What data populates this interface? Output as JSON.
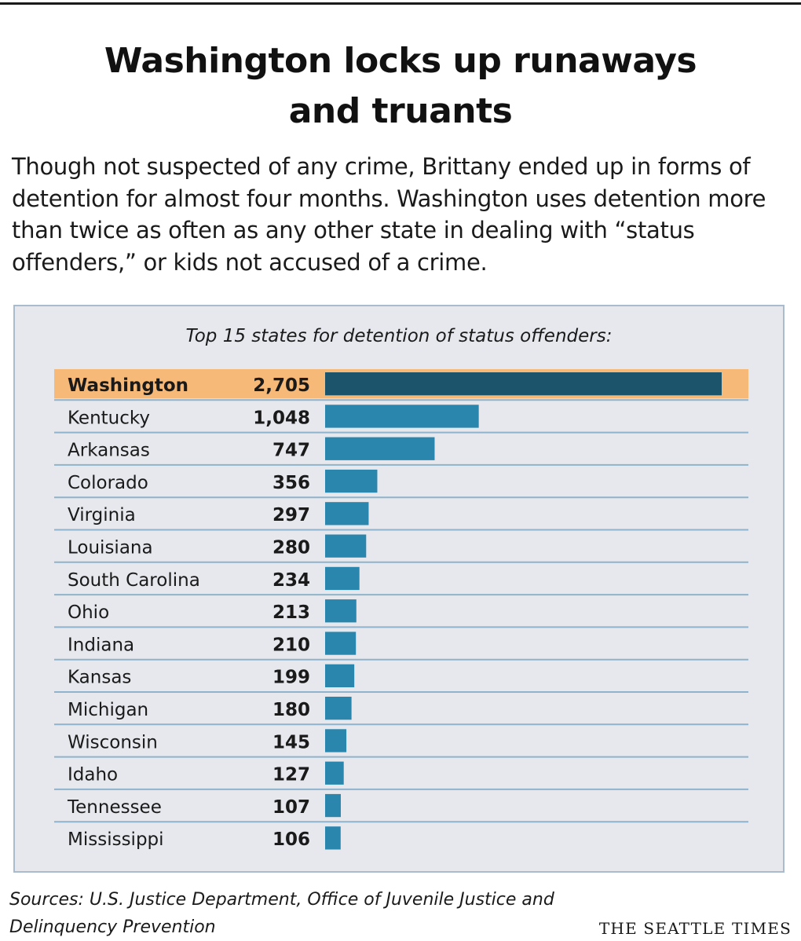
{
  "headline": {
    "line1": "Washington locks up runaways",
    "line2": "and truants"
  },
  "dek": "Though not suspected of any crime, Brittany ended up in forms of detention for almost four months. Washington uses detention more than twice as often as any other state in dealing with “status offenders,” or kids not accused of a crime.",
  "chart_data": {
    "type": "bar",
    "orientation": "horizontal",
    "title": "Top 15 states for detention of status offenders:",
    "categories": [
      "Washington",
      "Kentucky",
      "Arkansas",
      "Colorado",
      "Virginia",
      "Louisiana",
      "South Carolina",
      "Ohio",
      "Indiana",
      "Kansas",
      "Michigan",
      "Wisconsin",
      "Idaho",
      "Tennessee",
      "Mississippi"
    ],
    "values": [
      2705,
      1048,
      747,
      356,
      297,
      280,
      234,
      213,
      210,
      199,
      180,
      145,
      127,
      107,
      106
    ],
    "value_labels": [
      "2,705",
      "1,048",
      "747",
      "356",
      "297",
      "280",
      "234",
      "213",
      "210",
      "199",
      "180",
      "145",
      "127",
      "107",
      "106"
    ],
    "highlight": "Washington",
    "xlim": [
      0,
      2705
    ],
    "grid": false,
    "colors": {
      "bar": "#2a86ad",
      "highlight_bar": "#1c546c",
      "highlight_row": "#f7b978",
      "row_rule": "#8fb3cc"
    }
  },
  "footer": {
    "sources": "Sources: U.S. Justice Department, Office of Juvenile Justice and Delinquency Prevention",
    "credit": "THE SEATTLE TIMES"
  }
}
